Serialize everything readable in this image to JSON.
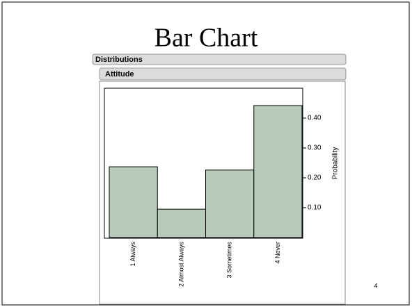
{
  "slide": {
    "title": "Bar Chart",
    "page_number": "4",
    "outline_header": "Distributions",
    "sub_header": "Attitude"
  },
  "chart_data": {
    "type": "bar",
    "categories": [
      "1 Always",
      "2 Almost Always",
      "3 Sometimes",
      "4 Never"
    ],
    "values": [
      0.237,
      0.095,
      0.226,
      0.442
    ],
    "color": "#b8cbbb",
    "ylim": [
      0,
      0.5
    ],
    "yticks": [
      {
        "value": 0.1,
        "label": "0.10"
      },
      {
        "value": 0.2,
        "label": "0.20"
      },
      {
        "value": 0.3,
        "label": "0.30"
      },
      {
        "value": 0.4,
        "label": "0.40"
      }
    ],
    "ylabel": "Probability",
    "y_axis_side": "right"
  }
}
